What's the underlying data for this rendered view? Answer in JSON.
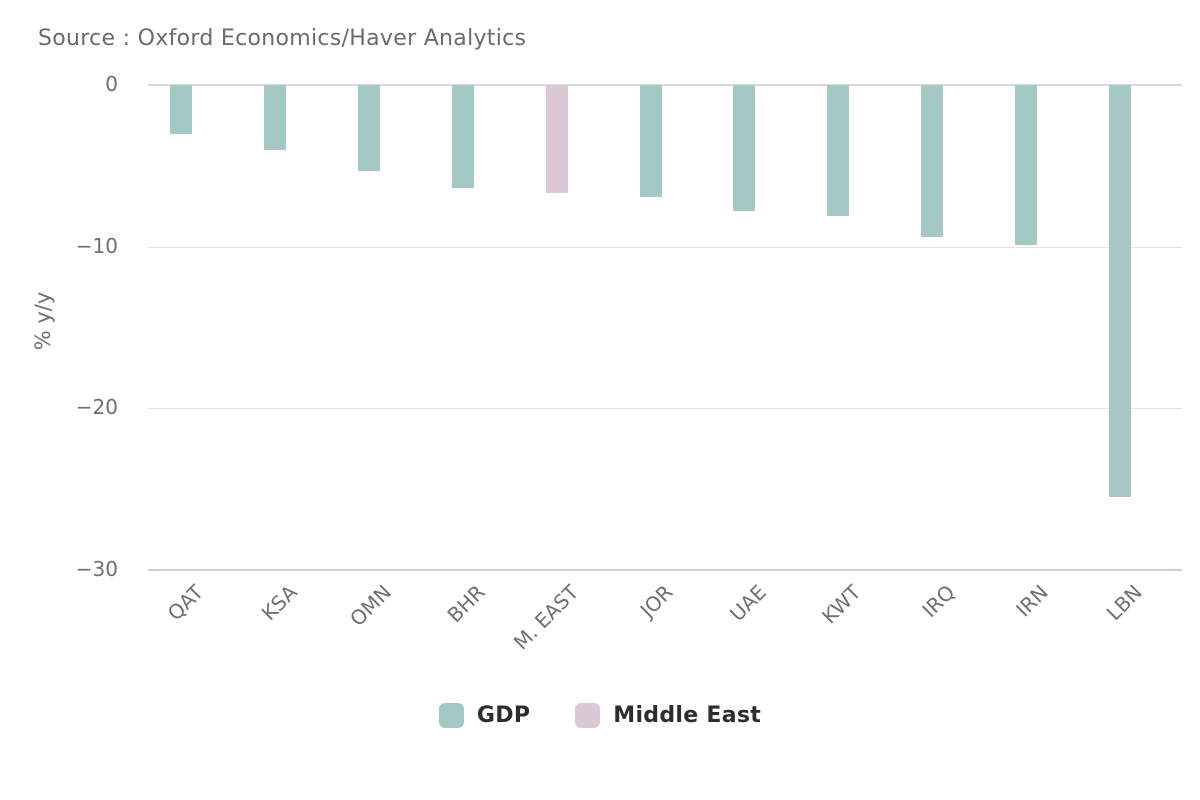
{
  "chart_data": {
    "type": "bar",
    "title": "Source : Oxford Economics/Haver Analytics",
    "ylabel": "% y/y",
    "categories": [
      "QAT",
      "KSA",
      "OMN",
      "BHR",
      "M. EAST",
      "JOR",
      "UAE",
      "KWT",
      "IRQ",
      "IRN",
      "LBN"
    ],
    "series": [
      {
        "name": "GDP",
        "color": "#a4c9c5",
        "values": [
          -3.0,
          -4.0,
          -5.3,
          -6.4,
          null,
          -6.9,
          -7.8,
          -8.1,
          -9.4,
          -9.9,
          -25.5
        ]
      },
      {
        "name": "Middle East",
        "color": "#dac8d5",
        "values": [
          null,
          null,
          null,
          null,
          -6.7,
          null,
          null,
          null,
          null,
          null,
          null
        ]
      }
    ],
    "ylim": [
      -30,
      0
    ],
    "yticks": [
      0,
      -10,
      -20,
      -30
    ],
    "grid": true,
    "legend_position": "bottom",
    "axis_colors": {
      "grid": "#e3e3e3",
      "zero_line": "#d9d9d9",
      "bottom_axis": "#c9cede",
      "tick_text": "#6f6f6f",
      "title_text": "#6b6b6b",
      "legend_text": "#2d2d2d"
    }
  }
}
